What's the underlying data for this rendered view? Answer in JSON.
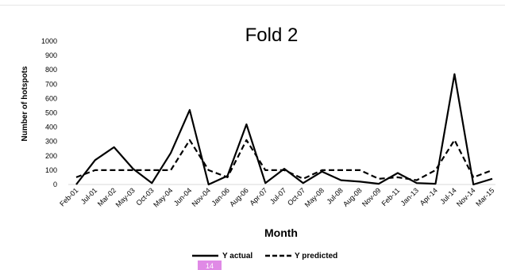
{
  "chart_data": {
    "type": "line",
    "title": "Fold 2",
    "xlabel": "Month",
    "ylabel": "Number of hotspots",
    "ylim": [
      0,
      1000
    ],
    "yticks": [
      0,
      100,
      200,
      300,
      400,
      500,
      600,
      700,
      800,
      900,
      1000
    ],
    "grid": false,
    "legend": "bottom",
    "categories": [
      "Feb-01",
      "Jul-01",
      "Mar-02",
      "May-03",
      "Oct-03",
      "May-04",
      "Jun-04",
      "Nov-04",
      "Jan-06",
      "Aug-06",
      "Apr-07",
      "Jul-07",
      "Oct-07",
      "May-08",
      "Jul-08",
      "Aug-08",
      "Nov-09",
      "Feb-11",
      "Jan-13",
      "Apr-14",
      "Jul-14",
      "Nov-14",
      "Mar-15"
    ],
    "series": [
      {
        "name": "Y actual",
        "color": "#000000",
        "dash": "solid",
        "values": [
          0,
          170,
          260,
          110,
          10,
          220,
          520,
          0,
          60,
          420,
          10,
          110,
          10,
          90,
          30,
          20,
          5,
          80,
          10,
          5,
          770,
          0,
          40
        ]
      },
      {
        "name": "Y predicted",
        "color": "#000000",
        "dash": "dashed",
        "values": [
          50,
          100,
          100,
          100,
          100,
          100,
          310,
          100,
          50,
          310,
          100,
          100,
          40,
          100,
          100,
          100,
          40,
          50,
          30,
          100,
          310,
          50,
          100
        ]
      }
    ]
  },
  "legend_badge": {
    "text": "14",
    "color": "#e08ae6"
  }
}
